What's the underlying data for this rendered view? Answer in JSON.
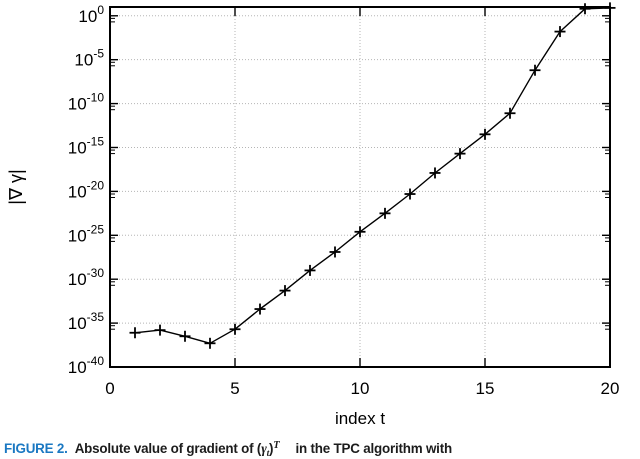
{
  "chart_data": {
    "type": "line",
    "title": "",
    "xlabel": "index t",
    "ylabel": "|∇ γ|",
    "marker": "plus",
    "grid": true,
    "legend": "none",
    "xlim": [
      0,
      20
    ],
    "ylim": [
      "1e-40",
      "1e1"
    ],
    "ylim_exponents": [
      -40,
      1
    ],
    "x_ticks": [
      0,
      5,
      10,
      15,
      20
    ],
    "y_tick_labels": [
      "10^0",
      "10^-5",
      "10^-10",
      "10^-15",
      "10^-20",
      "10^-25",
      "10^-30",
      "10^-35",
      "10^-40"
    ],
    "y_tick_exponents": [
      0,
      -5,
      -10,
      -15,
      -20,
      -25,
      -30,
      -35,
      -40
    ],
    "x": [
      1,
      2,
      3,
      4,
      5,
      6,
      7,
      8,
      9,
      10,
      11,
      12,
      13,
      14,
      15,
      16,
      17,
      18,
      19,
      20
    ],
    "values": [
      "8e-37",
      "1.6e-36",
      "3e-37",
      "5e-38",
      "2e-36",
      "4e-34",
      "5e-32",
      "1e-29",
      "1.3e-27",
      "2.5e-25",
      "3e-23",
      "5e-21",
      "1.3e-18",
      "2e-16",
      "3e-14",
      "8e-12",
      "6e-7",
      "1.6e-2",
      "6",
      "8"
    ],
    "value_exponents": [
      -36.1,
      -35.8,
      -36.5,
      -37.3,
      -35.7,
      -33.4,
      -31.3,
      -29.0,
      -26.9,
      -24.6,
      -22.5,
      -20.3,
      -17.9,
      -15.7,
      -13.5,
      -11.1,
      -6.2,
      -1.8,
      0.8,
      0.9
    ],
    "line_color": "#000000",
    "grid_color": "#b5b5b5",
    "frame_color": "#000000"
  },
  "caption": {
    "label": "FIGURE 2.",
    "label_color": "#1a78c2",
    "text_before": "Absolute value of gradient of (",
    "formula_var": "γ",
    "formula_sub": "t",
    "formula_close": ")",
    "formula_sup": "T",
    "text_after": "in the TPC algorithm with"
  }
}
